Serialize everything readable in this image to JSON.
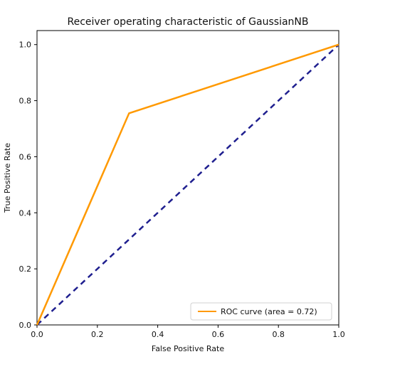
{
  "chart_data": {
    "type": "line",
    "title": "Receiver operating characteristic of GaussianNB",
    "xlabel": "False Positive Rate",
    "ylabel": "True Positive Rate",
    "xlim": [
      0.0,
      1.0
    ],
    "ylim": [
      0.0,
      1.05
    ],
    "xticks": [
      0.0,
      0.2,
      0.4,
      0.6,
      0.8,
      1.0
    ],
    "xtick_labels": [
      "0.0",
      "0.2",
      "0.4",
      "0.6",
      "0.8",
      "1.0"
    ],
    "yticks": [
      0.0,
      0.2,
      0.4,
      0.6,
      0.8,
      1.0
    ],
    "ytick_labels": [
      "0.0",
      "0.2",
      "0.4",
      "0.6",
      "0.8",
      "1.0"
    ],
    "grid": false,
    "legend_position": "lower right",
    "series": [
      {
        "name": "ROC curve (area = 0.72)",
        "color": "#ff9900",
        "style": "solid",
        "x": [
          0.0,
          0.305,
          1.0
        ],
        "y": [
          0.0,
          0.755,
          1.0
        ]
      },
      {
        "color": "#1f1f8f",
        "style": "dashed",
        "x": [
          0.0,
          1.0
        ],
        "y": [
          0.0,
          1.0
        ]
      }
    ]
  }
}
